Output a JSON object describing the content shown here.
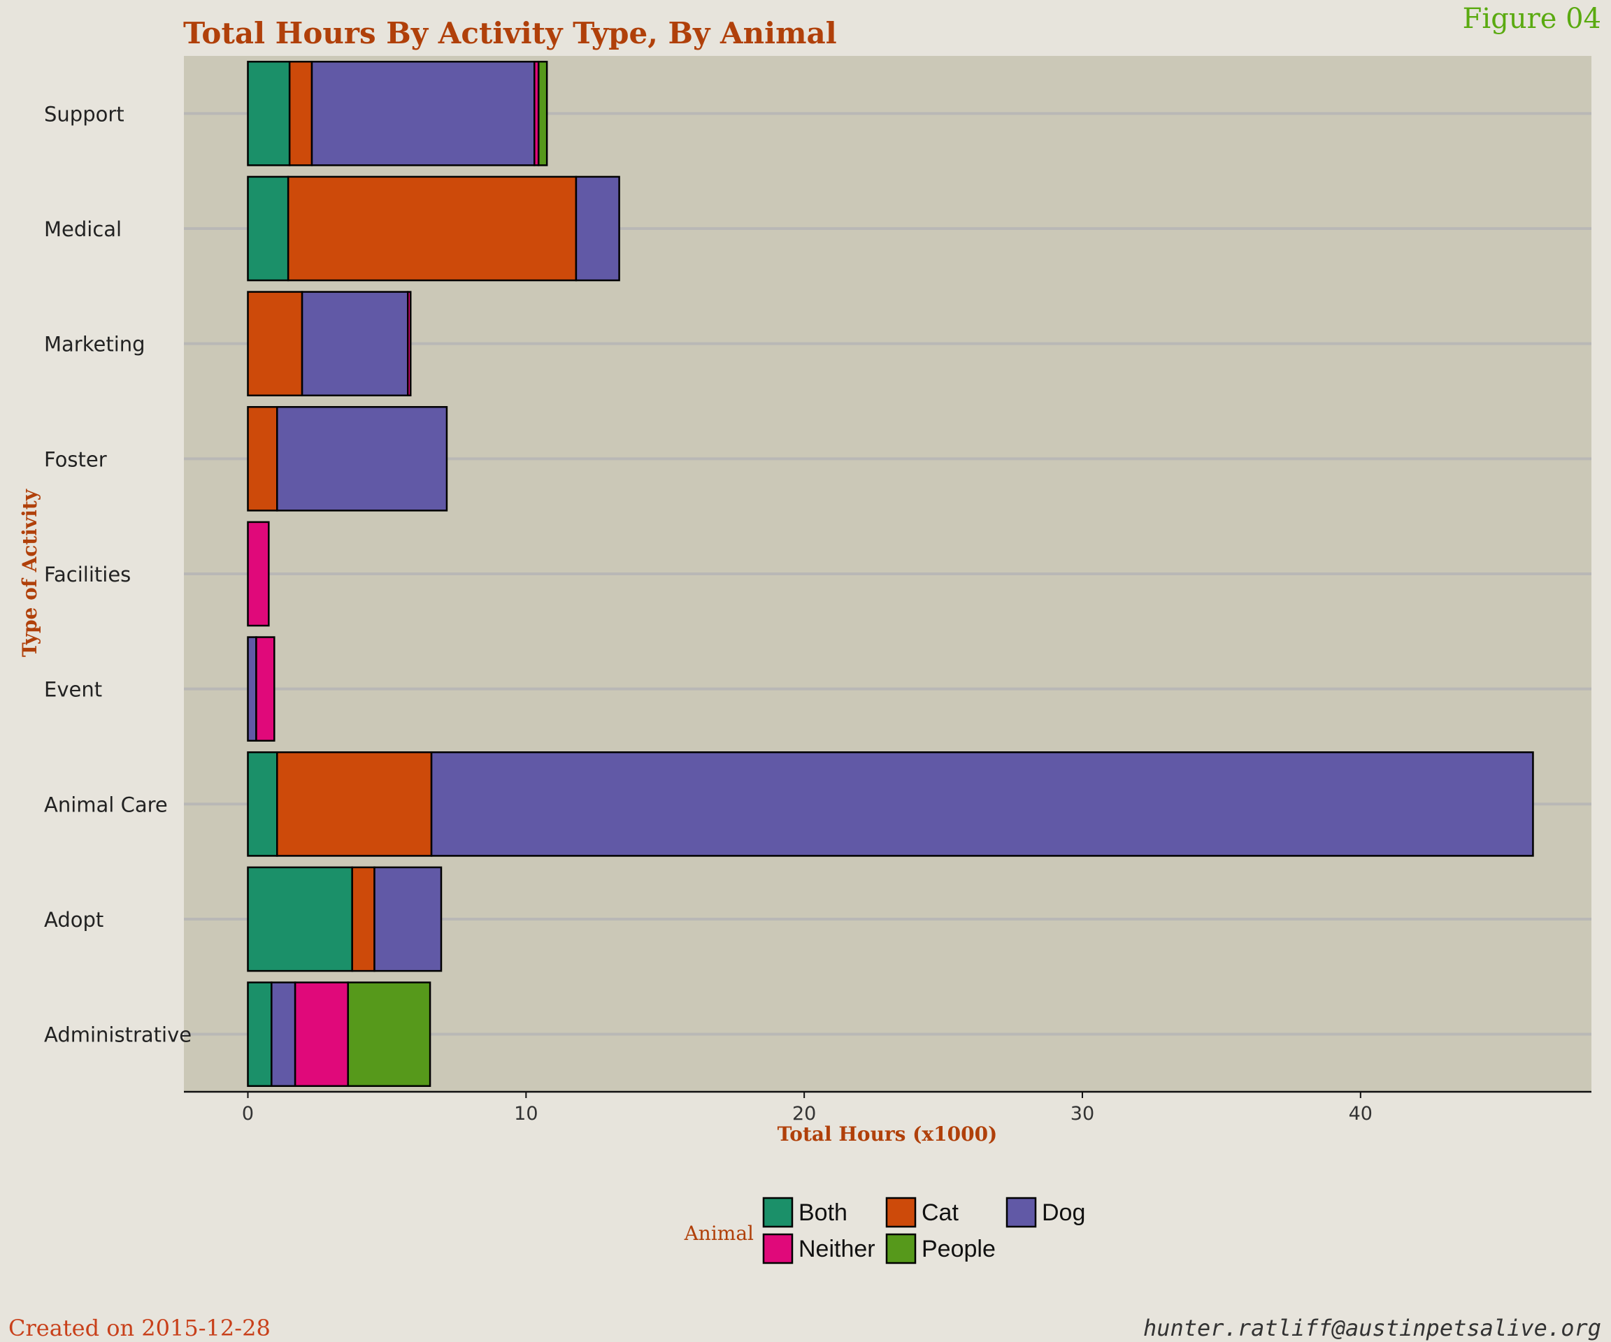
{
  "figure_label": "Figure 04",
  "footer": {
    "created": "Created on 2015-12-28",
    "email": "hunter.ratliff@austinpetsalive.org"
  },
  "chart_data": {
    "type": "bar",
    "orientation": "horizontal",
    "stacked": true,
    "title": "Total Hours By Activity Type, By Animal",
    "xlabel": "Total Hours (x1000)",
    "ylabel": "Type of Activity",
    "xlim": [
      -2.3,
      48.3
    ],
    "xticks": [
      0,
      10,
      20,
      30,
      40
    ],
    "grid": "horizontal",
    "legend_title": "Animal",
    "legend_position": "bottom",
    "categories": [
      "Support",
      "Medical",
      "Marketing",
      "Foster",
      "Facilities",
      "Event",
      "Animal Care",
      "Adopt",
      "Administrative"
    ],
    "series": [
      {
        "name": "Both",
        "color": "#1b9069",
        "values": [
          1.5,
          1.45,
          0.0,
          0.0,
          0.0,
          0.0,
          1.05,
          3.75,
          0.85
        ]
      },
      {
        "name": "Cat",
        "color": "#cd4a0a",
        "values": [
          0.8,
          10.35,
          1.95,
          1.05,
          0.0,
          0.0,
          5.55,
          0.8,
          0.0
        ]
      },
      {
        "name": "Dog",
        "color": "#6159a6",
        "values": [
          8.0,
          1.55,
          3.8,
          6.1,
          0.0,
          0.3,
          39.6,
          2.4,
          0.85
        ]
      },
      {
        "name": "Neither",
        "color": "#e0097a",
        "values": [
          0.15,
          0.0,
          0.1,
          0.0,
          0.75,
          0.65,
          0.0,
          0.0,
          1.9
        ]
      },
      {
        "name": "People",
        "color": "#56991b",
        "values": [
          0.3,
          0.0,
          0.0,
          0.0,
          0.0,
          0.0,
          0.0,
          0.0,
          2.95
        ]
      }
    ]
  }
}
